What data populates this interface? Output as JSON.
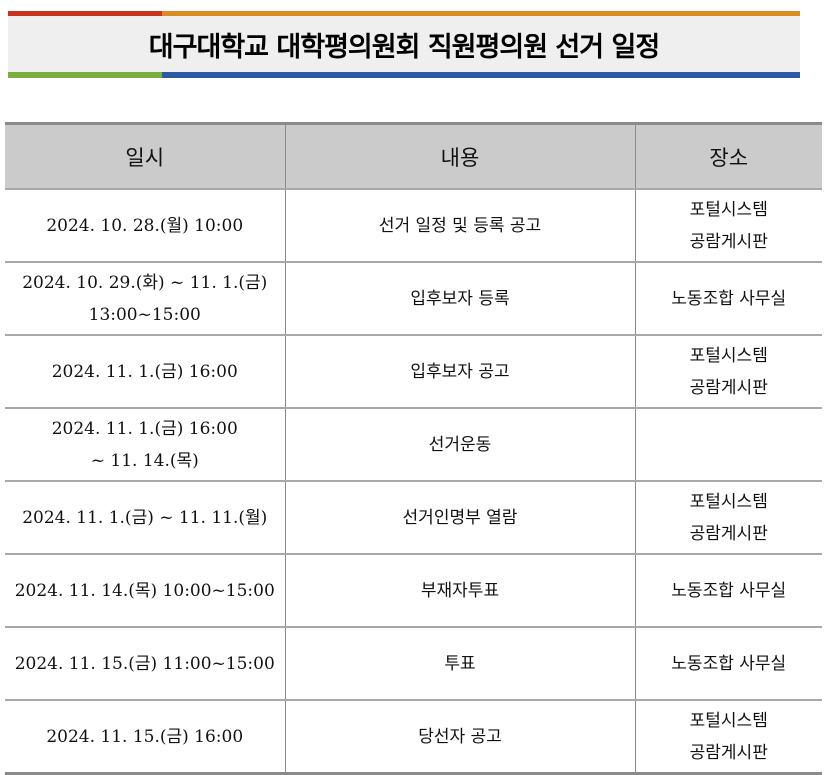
{
  "title": "대구대학교 대학평의원회 직원평의원 선거 일정",
  "colors": {
    "stripe_top_left": "#c8321f",
    "stripe_top_right": "#d98c22",
    "stripe_bottom_left": "#7aaf3f",
    "stripe_bottom_right": "#2f58a3",
    "banner_bg": "#efefef",
    "header_bg": "#cbcbcb"
  },
  "table": {
    "headers": [
      "일시",
      "내용",
      "장소"
    ],
    "rows": [
      {
        "date": [
          "2024. 10. 28.(월) 10:00"
        ],
        "content": "선거 일정 및 등록 공고",
        "place": [
          "포털시스템",
          "공람게시판"
        ]
      },
      {
        "date": [
          "2024. 10. 29.(화) ~ 11. 1.(금)",
          "13:00~15:00"
        ],
        "content": "입후보자 등록",
        "place": [
          "노동조합 사무실"
        ]
      },
      {
        "date": [
          "2024. 11. 1.(금) 16:00"
        ],
        "content": "입후보자 공고",
        "place": [
          "포털시스템",
          "공람게시판"
        ]
      },
      {
        "date": [
          "2024. 11. 1.(금) 16:00",
          "~ 11. 14.(목)"
        ],
        "content": "선거운동",
        "place": []
      },
      {
        "date": [
          "2024. 11. 1.(금) ~ 11. 11.(월)"
        ],
        "content": "선거인명부 열람",
        "place": [
          "포털시스템",
          "공람게시판"
        ]
      },
      {
        "date": [
          "2024. 11. 14.(목) 10:00~15:00"
        ],
        "content": "부재자투표",
        "place": [
          "노동조합 사무실"
        ]
      },
      {
        "date": [
          "2024. 11. 15.(금) 11:00~15:00"
        ],
        "content": "투표",
        "place": [
          "노동조합 사무실"
        ]
      },
      {
        "date": [
          "2024. 11. 15.(금) 16:00"
        ],
        "content": "당선자 공고",
        "place": [
          "포털시스템",
          "공람게시판"
        ]
      }
    ]
  }
}
